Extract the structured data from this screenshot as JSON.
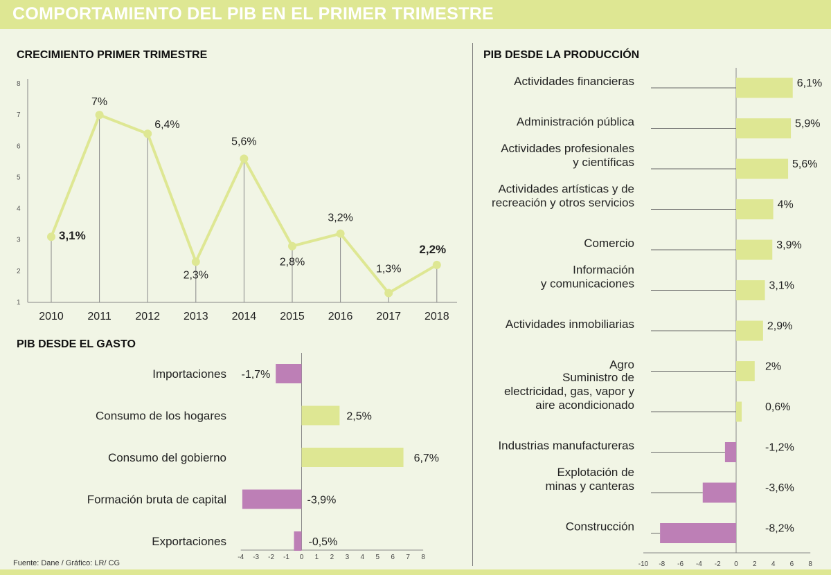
{
  "header": {
    "title": "COMPORTAMIENTO DEL PIB EN EL PRIMER TRIMESTRE"
  },
  "source": "Fuente: Dane / Gráfico: LR/ CG",
  "colors": {
    "positive": "#dee793",
    "negative": "#bd7fb6",
    "line": "#dee793",
    "header": "#dee793"
  },
  "chart_data": [
    {
      "id": "growth",
      "type": "line",
      "title": "CRECIMIENTO PRIMER TRIMESTRE",
      "categories": [
        "2010",
        "2011",
        "2012",
        "2013",
        "2014",
        "2015",
        "2016",
        "2017",
        "2018"
      ],
      "values": [
        3.1,
        7,
        6.4,
        2.3,
        5.6,
        2.8,
        3.2,
        1.3,
        2.2
      ],
      "labels": [
        "3,1%",
        "7%",
        "6,4%",
        "2,3%",
        "5,6%",
        "2,8%",
        "3,2%",
        "1,3%",
        "2,2%"
      ],
      "bold_labels": [
        0,
        8
      ],
      "ylim": [
        1,
        8
      ],
      "yticks": [
        "1",
        "2",
        "3",
        "4",
        "5",
        "6",
        "7",
        "8"
      ],
      "xlabel": "",
      "ylabel": ""
    },
    {
      "id": "spending",
      "type": "bar",
      "orientation": "horizontal",
      "title": "PIB DESDE EL GASTO",
      "categories": [
        "Importaciones",
        "Consumo de los hogares",
        "Consumo del gobierno",
        "Formación bruta de capital",
        "Exportaciones"
      ],
      "values": [
        -1.7,
        2.5,
        6.7,
        -3.9,
        -0.5
      ],
      "labels": [
        "-1,7%",
        "2,5%",
        "6,7%",
        "-3,9%",
        "-0,5%"
      ],
      "xlim": [
        -4,
        8
      ],
      "xticks": [
        "-4",
        "-3",
        "-2",
        "-1",
        "0",
        "1",
        "2",
        "3",
        "4",
        "5",
        "6",
        "7",
        "8"
      ]
    },
    {
      "id": "production",
      "type": "bar",
      "orientation": "horizontal",
      "title": "PIB DESDE LA PRODUCCIÓN",
      "categories": [
        [
          "Actividades financieras"
        ],
        [
          "Administración pública"
        ],
        [
          "Actividades profesionales",
          "y científicas"
        ],
        [
          "Actividades artísticas y de",
          "recreación y otros servicios"
        ],
        [
          "Comercio"
        ],
        [
          "Información",
          "y comunicaciones"
        ],
        [
          "Actividades inmobiliarias"
        ],
        [
          "Agro"
        ],
        [
          "Suministro de",
          "electricidad, gas, vapor y",
          "aire acondicionado"
        ],
        [
          "Industrias manufactureras"
        ],
        [
          "Explotación de",
          "minas y canteras"
        ],
        [
          "Construcción"
        ]
      ],
      "values": [
        6.1,
        5.9,
        5.6,
        4,
        3.9,
        3.1,
        2.9,
        2,
        0.6,
        -1.2,
        -3.6,
        -8.2
      ],
      "labels": [
        "6,1%",
        "5,9%",
        "5,6%",
        "4%",
        "3,9%",
        "3,1%",
        "2,9%",
        "2%",
        "0,6%",
        "-1,2%",
        "-3,6%",
        "-8,2%"
      ],
      "xlim": [
        -10,
        8
      ],
      "xticks": [
        "-10",
        "-8",
        "-6",
        "-4",
        "-2",
        "0",
        "2",
        "4",
        "6",
        "8"
      ]
    }
  ]
}
